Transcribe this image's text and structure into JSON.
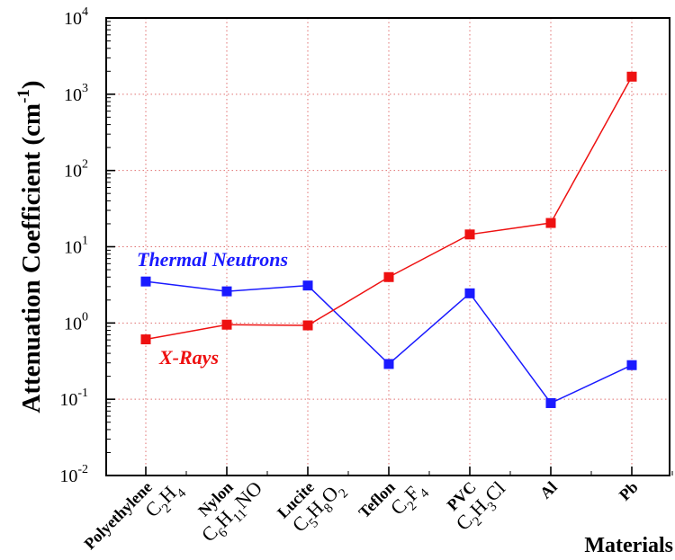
{
  "chart_data": {
    "type": "line",
    "title": "",
    "ylabel": "Attenuation Coefficient (cm",
    "ylabel_sup": "-1",
    "ylabel_close": ")",
    "xlabel": "Materials",
    "yscale": "log",
    "ylim": [
      0.01,
      10000
    ],
    "grid": true,
    "categories": [
      {
        "name": "Polyethylene",
        "formula": [
          [
            "C",
            ""
          ],
          [
            "",
            "2"
          ],
          [
            "H",
            ""
          ],
          [
            "",
            "4"
          ]
        ]
      },
      {
        "name": "Nylon",
        "formula": [
          [
            "C",
            ""
          ],
          [
            "",
            "6"
          ],
          [
            "H",
            ""
          ],
          [
            "",
            "11"
          ],
          [
            "NO",
            ""
          ]
        ]
      },
      {
        "name": "Lucite",
        "formula": [
          [
            "C",
            ""
          ],
          [
            "",
            "5"
          ],
          [
            "H",
            ""
          ],
          [
            "",
            "8"
          ],
          [
            "O",
            ""
          ],
          [
            "",
            "2"
          ]
        ]
      },
      {
        "name": "Teflon",
        "formula": [
          [
            "C",
            ""
          ],
          [
            "",
            "2"
          ],
          [
            "F",
            ""
          ],
          [
            "",
            "4"
          ]
        ]
      },
      {
        "name": "PVC",
        "formula": [
          [
            "C",
            ""
          ],
          [
            "",
            "2"
          ],
          [
            "H",
            ""
          ],
          [
            "",
            "3"
          ],
          [
            "Cl",
            ""
          ]
        ]
      },
      {
        "name": "Al",
        "formula": []
      },
      {
        "name": "Pb",
        "formula": []
      }
    ],
    "yticks": [
      {
        "base": "10",
        "exp": "-2"
      },
      {
        "base": "10",
        "exp": "-1"
      },
      {
        "base": "10",
        "exp": "0"
      },
      {
        "base": "10",
        "exp": "1"
      },
      {
        "base": "10",
        "exp": "2"
      },
      {
        "base": "10",
        "exp": "3"
      },
      {
        "base": "10",
        "exp": "4"
      }
    ],
    "series": [
      {
        "name": "Thermal Neutrons",
        "color": "#1a1aff",
        "values": [
          3.5,
          2.6,
          3.1,
          0.29,
          2.45,
          0.089,
          0.28
        ]
      },
      {
        "name": "X-Rays",
        "color": "#ee1111",
        "values": [
          0.61,
          0.95,
          0.93,
          4.0,
          14.5,
          20.5,
          1700
        ]
      }
    ],
    "grid_color": "#e07070"
  }
}
